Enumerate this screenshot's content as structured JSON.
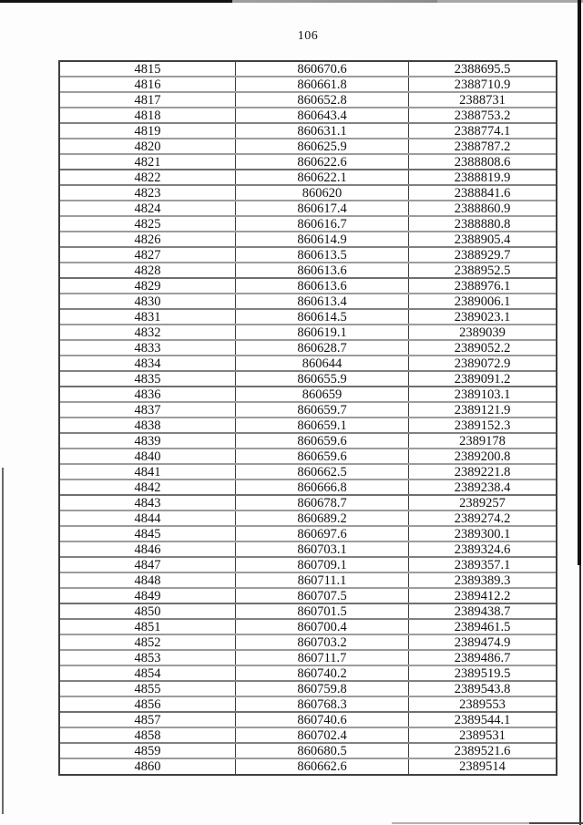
{
  "page": {
    "number": "106"
  },
  "table": {
    "rows": [
      [
        "4815",
        "860670.6",
        "2388695.5"
      ],
      [
        "4816",
        "860661.8",
        "2388710.9"
      ],
      [
        "4817",
        "860652.8",
        "2388731"
      ],
      [
        "4818",
        "860643.4",
        "2388753.2"
      ],
      [
        "4819",
        "860631.1",
        "2388774.1"
      ],
      [
        "4820",
        "860625.9",
        "2388787.2"
      ],
      [
        "4821",
        "860622.6",
        "2388808.6"
      ],
      [
        "4822",
        "860622.1",
        "2388819.9"
      ],
      [
        "4823",
        "860620",
        "2388841.6"
      ],
      [
        "4824",
        "860617.4",
        "2388860.9"
      ],
      [
        "4825",
        "860616.7",
        "2388880.8"
      ],
      [
        "4826",
        "860614.9",
        "2388905.4"
      ],
      [
        "4827",
        "860613.5",
        "2388929.7"
      ],
      [
        "4828",
        "860613.6",
        "2388952.5"
      ],
      [
        "4829",
        "860613.6",
        "2388976.1"
      ],
      [
        "4830",
        "860613.4",
        "2389006.1"
      ],
      [
        "4831",
        "860614.5",
        "2389023.1"
      ],
      [
        "4832",
        "860619.1",
        "2389039"
      ],
      [
        "4833",
        "860628.7",
        "2389052.2"
      ],
      [
        "4834",
        "860644",
        "2389072.9"
      ],
      [
        "4835",
        "860655.9",
        "2389091.2"
      ],
      [
        "4836",
        "860659",
        "2389103.1"
      ],
      [
        "4837",
        "860659.7",
        "2389121.9"
      ],
      [
        "4838",
        "860659.1",
        "2389152.3"
      ],
      [
        "4839",
        "860659.6",
        "2389178"
      ],
      [
        "4840",
        "860659.6",
        "2389200.8"
      ],
      [
        "4841",
        "860662.5",
        "2389221.8"
      ],
      [
        "4842",
        "860666.8",
        "2389238.4"
      ],
      [
        "4843",
        "860678.7",
        "2389257"
      ],
      [
        "4844",
        "860689.2",
        "2389274.2"
      ],
      [
        "4845",
        "860697.6",
        "2389300.1"
      ],
      [
        "4846",
        "860703.1",
        "2389324.6"
      ],
      [
        "4847",
        "860709.1",
        "2389357.1"
      ],
      [
        "4848",
        "860711.1",
        "2389389.3"
      ],
      [
        "4849",
        "860707.5",
        "2389412.2"
      ],
      [
        "4850",
        "860701.5",
        "2389438.7"
      ],
      [
        "4851",
        "860700.4",
        "2389461.5"
      ],
      [
        "4852",
        "860703.2",
        "2389474.9"
      ],
      [
        "4853",
        "860711.7",
        "2389486.7"
      ],
      [
        "4854",
        "860740.2",
        "2389519.5"
      ],
      [
        "4855",
        "860759.8",
        "2389543.8"
      ],
      [
        "4856",
        "860768.3",
        "2389553"
      ],
      [
        "4857",
        "860740.6",
        "2389544.1"
      ],
      [
        "4858",
        "860702.4",
        "2389531"
      ],
      [
        "4859",
        "860680.5",
        "2389521.6"
      ],
      [
        "4860",
        "860662.6",
        "2389514"
      ]
    ]
  }
}
